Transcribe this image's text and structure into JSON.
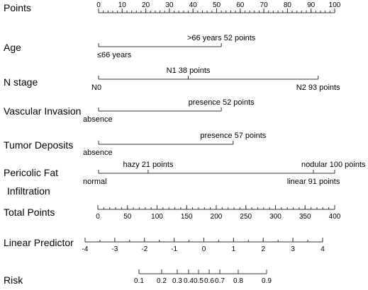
{
  "chart_data": {
    "type": "nomogram",
    "rows": [
      {
        "id": "points",
        "label": "Points",
        "kind": "axis",
        "min": 0,
        "max": 100,
        "ticks": [
          0,
          10,
          20,
          30,
          40,
          50,
          60,
          70,
          80,
          90,
          100
        ],
        "minor_step": 2
      },
      {
        "id": "age",
        "label": "Age",
        "kind": "variable",
        "levels": [
          {
            "label": "≤66 years",
            "points": 0,
            "side": "below"
          },
          {
            "label": ">66 years 52 points",
            "points": 52,
            "side": "above"
          }
        ]
      },
      {
        "id": "n_stage",
        "label": "N stage",
        "kind": "variable",
        "levels": [
          {
            "label": "N0",
            "points": 0,
            "side": "below"
          },
          {
            "label": "N1 38 points",
            "points": 38,
            "side": "above"
          },
          {
            "label": "N2 93 points",
            "points": 93,
            "side": "below"
          }
        ]
      },
      {
        "id": "vascular",
        "label": "Vascular Invasion",
        "kind": "variable",
        "levels": [
          {
            "label": "absence",
            "points": 0,
            "side": "below"
          },
          {
            "label": "presence 52 points",
            "points": 52,
            "side": "above"
          }
        ]
      },
      {
        "id": "tumor",
        "label": "Tumor Deposits",
        "kind": "variable",
        "levels": [
          {
            "label": "absence",
            "points": 0,
            "side": "below"
          },
          {
            "label": "presence 57 points",
            "points": 57,
            "side": "above"
          }
        ]
      },
      {
        "id": "pericolic",
        "label": "Pericolic Fat",
        "label2": "Infiltration",
        "kind": "variable",
        "levels": [
          {
            "label": "normal",
            "points": 0,
            "side": "below"
          },
          {
            "label": "hazy 21 points",
            "points": 21,
            "side": "above"
          },
          {
            "label": "linear 91 points",
            "points": 91,
            "side": "below"
          },
          {
            "label": "nodular 100 points",
            "points": 100,
            "side": "above"
          }
        ]
      },
      {
        "id": "total",
        "label": "Total Points",
        "kind": "axis",
        "min": 0,
        "max": 400,
        "ticks": [
          0,
          50,
          100,
          150,
          200,
          250,
          300,
          350,
          400
        ],
        "minor_step": 10
      },
      {
        "id": "linear",
        "label": "Linear Predictor",
        "kind": "axis",
        "min": -4,
        "max": 4,
        "ticks": [
          -4,
          -3,
          -2,
          -1,
          0,
          1,
          2,
          3,
          4
        ],
        "minor_step": 0.5
      },
      {
        "id": "risk",
        "label": "Risk",
        "kind": "axis",
        "ticks": [
          0.1,
          0.2,
          0.3,
          0.4,
          0.5,
          0.6,
          0.7,
          0.8,
          0.9
        ]
      }
    ]
  }
}
